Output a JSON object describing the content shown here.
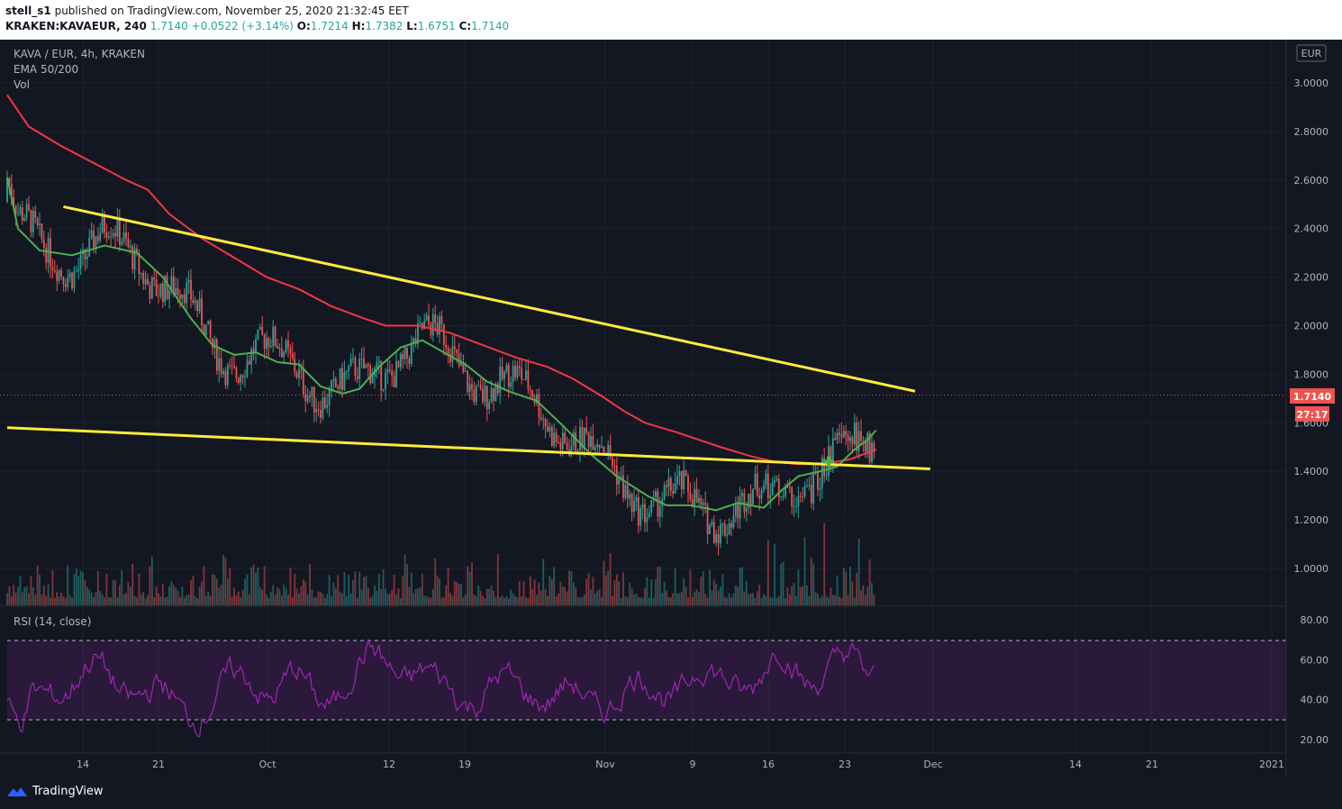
{
  "header": {
    "publisher": "stell_s1",
    "published_text": "published on TradingView.com, November 25, 2020 21:32:45 EET",
    "symbol_line": "KRAKEN:KAVAEUR, 240",
    "last": "1.7140",
    "change": "+0.0522 (+3.14%)",
    "o_label": "O:",
    "o_value": "1.7214",
    "h_label": "H:",
    "h_value": "1.7382",
    "l_label": "L:",
    "l_value": "1.6751",
    "c_label": "C:",
    "c_value": "1.7140"
  },
  "legend": {
    "title": "KAVA / EUR, 4h, KRAKEN",
    "ema": "EMA 50/200",
    "vol": "Vol",
    "rsi": "RSI (14, close)"
  },
  "currency_badge": "EUR",
  "price_tag": "1.7140",
  "countdown_tag": "27:17",
  "footer": {
    "brand": "TradingView"
  },
  "colors": {
    "background": "#131722",
    "ema50": "#4caf50",
    "ema200": "#f23645",
    "trendline": "#ffeb3b",
    "rsi": "#9c27b0",
    "up": "#26a69a",
    "down": "#ef5350"
  },
  "chart_data": [
    {
      "type": "candlestick",
      "title": "KAVA / EUR, 4h, KRAKEN",
      "y_ticks": [
        "3.0000",
        "2.8000",
        "2.6000",
        "2.4000",
        "2.2000",
        "2.0000",
        "1.8000",
        "1.6000",
        "1.4000",
        "1.2000",
        "1.0000"
      ],
      "ylim": [
        0.85,
        3.15
      ],
      "x_ticks": [
        "14",
        "21",
        "Oct",
        "12",
        "19",
        "Nov",
        "9",
        "16",
        "23",
        "Dec",
        "14",
        "21",
        "2021"
      ],
      "ema50": [
        [
          0,
          2.61
        ],
        [
          5,
          2.4
        ],
        [
          15,
          2.31
        ],
        [
          30,
          2.29
        ],
        [
          45,
          2.33
        ],
        [
          60,
          2.3
        ],
        [
          72,
          2.2
        ],
        [
          85,
          2.03
        ],
        [
          95,
          1.92
        ],
        [
          105,
          1.88
        ],
        [
          115,
          1.89
        ],
        [
          125,
          1.85
        ],
        [
          135,
          1.84
        ],
        [
          145,
          1.75
        ],
        [
          155,
          1.72
        ],
        [
          163,
          1.74
        ],
        [
          172,
          1.83
        ],
        [
          182,
          1.91
        ],
        [
          192,
          1.94
        ],
        [
          200,
          1.9
        ],
        [
          212,
          1.84
        ],
        [
          222,
          1.77
        ],
        [
          232,
          1.73
        ],
        [
          245,
          1.69
        ],
        [
          258,
          1.58
        ],
        [
          270,
          1.47
        ],
        [
          282,
          1.38
        ],
        [
          296,
          1.3
        ],
        [
          305,
          1.26
        ],
        [
          316,
          1.26
        ],
        [
          328,
          1.24
        ],
        [
          338,
          1.27
        ],
        [
          350,
          1.25
        ],
        [
          358,
          1.32
        ],
        [
          366,
          1.38
        ],
        [
          376,
          1.4
        ],
        [
          384,
          1.42
        ],
        [
          392,
          1.49
        ],
        [
          398,
          1.53
        ],
        [
          402,
          1.57
        ]
      ],
      "ema200": [
        [
          0,
          2.95
        ],
        [
          10,
          2.82
        ],
        [
          25,
          2.74
        ],
        [
          40,
          2.67
        ],
        [
          55,
          2.6
        ],
        [
          65,
          2.56
        ],
        [
          75,
          2.46
        ],
        [
          90,
          2.36
        ],
        [
          105,
          2.28
        ],
        [
          120,
          2.2
        ],
        [
          135,
          2.15
        ],
        [
          150,
          2.08
        ],
        [
          165,
          2.03
        ],
        [
          175,
          2.0
        ],
        [
          190,
          2.0
        ],
        [
          205,
          1.97
        ],
        [
          220,
          1.92
        ],
        [
          235,
          1.87
        ],
        [
          250,
          1.83
        ],
        [
          262,
          1.78
        ],
        [
          275,
          1.71
        ],
        [
          285,
          1.65
        ],
        [
          295,
          1.6
        ],
        [
          310,
          1.56
        ],
        [
          320,
          1.53
        ],
        [
          330,
          1.5
        ],
        [
          345,
          1.46
        ],
        [
          355,
          1.44
        ],
        [
          365,
          1.43
        ],
        [
          378,
          1.43
        ],
        [
          390,
          1.45
        ],
        [
          402,
          1.49
        ]
      ],
      "trendline_upper": {
        "from": [
          26,
          2.49
        ],
        "to": [
          420,
          1.73
        ]
      },
      "trendline_lower": {
        "from": [
          0,
          1.58
        ],
        "to": [
          427,
          1.41
        ]
      },
      "last_price": 1.714,
      "candles_count": 402
    },
    {
      "type": "line",
      "title": "RSI (14, close)",
      "y_ticks": [
        "80.00",
        "60.00",
        "40.00",
        "20.00"
      ],
      "ylim": [
        15,
        85
      ],
      "bands": [
        30,
        70
      ],
      "last_value": 57
    }
  ]
}
